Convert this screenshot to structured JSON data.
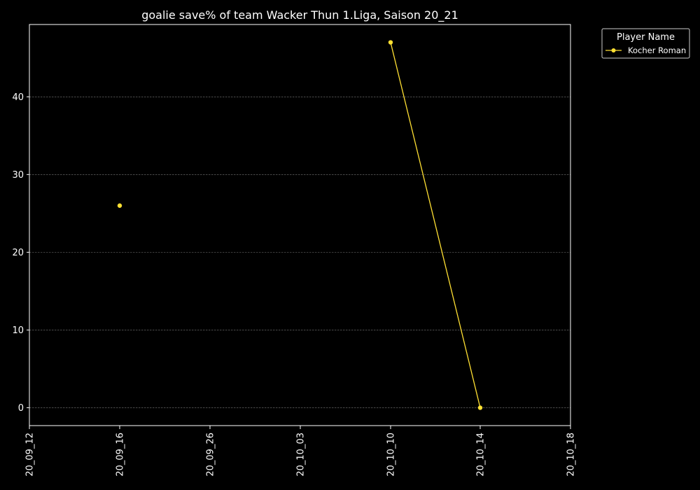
{
  "chart_data": {
    "type": "line",
    "title": "goalie save% of team Wacker Thun 1.Liga, Saison 20_21",
    "xlabel": "",
    "ylabel": "",
    "x_ticks": [
      "20_09_12",
      "20_09_16",
      "20_09_26",
      "20_10_03",
      "20_10_10",
      "20_10_14",
      "20_10_18"
    ],
    "y_ticks": [
      0,
      10,
      20,
      30,
      40
    ],
    "ylim": [
      -2.3,
      49.3
    ],
    "grid": "horizontal dashed",
    "legend": {
      "title": "Player Name",
      "placement": "outside top-right"
    },
    "series": [
      {
        "name": "Kocher Roman",
        "color": "#ffe033",
        "points": [
          {
            "x": "20_09_16",
            "y": 26
          },
          {
            "x": "20_10_10",
            "y": 47
          },
          {
            "x": "20_10_14",
            "y": 0
          }
        ],
        "segments": [
          [
            "20_10_10",
            "20_10_14"
          ]
        ]
      }
    ]
  }
}
